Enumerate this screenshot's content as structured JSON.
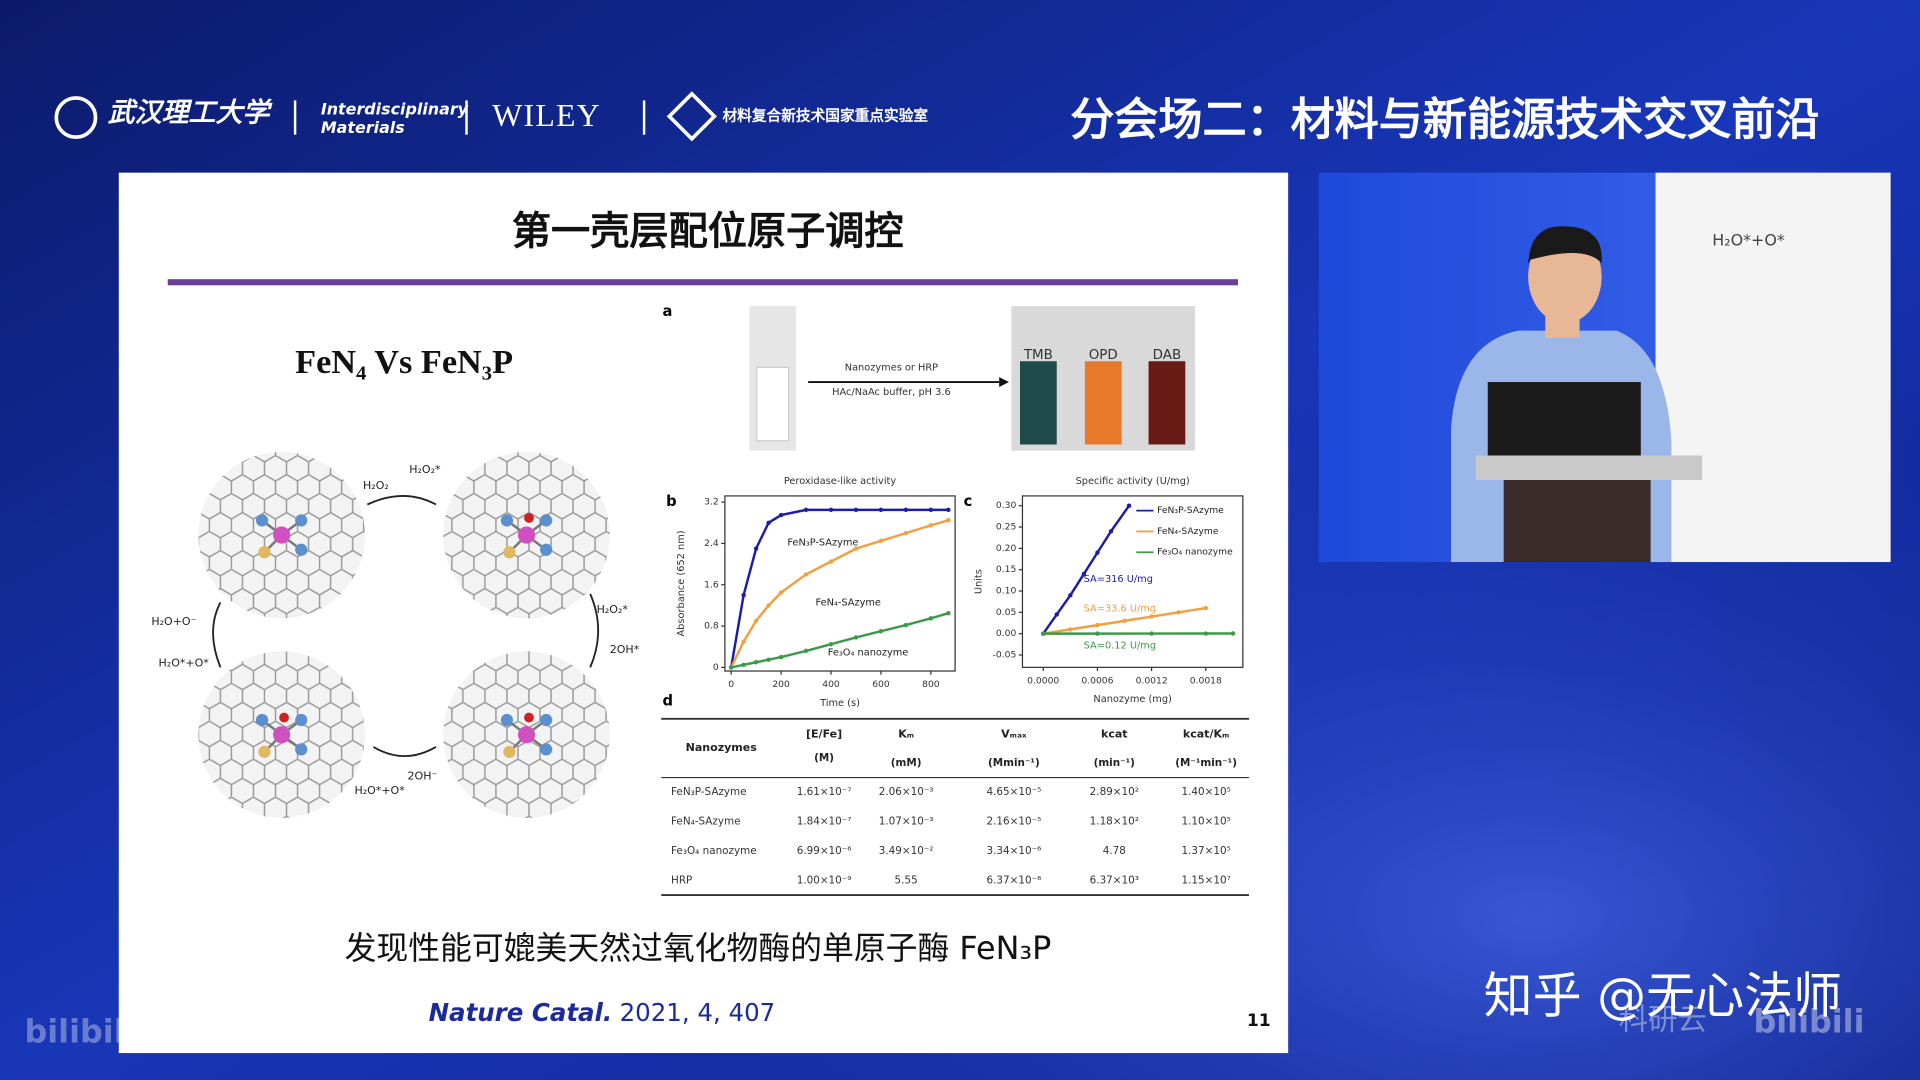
{
  "header": {
    "university": "武汉理工大学",
    "journal_line1": "Interdisciplinary",
    "journal_line2": "Materials",
    "publisher": "WILEY",
    "lab": "材料复合新技术国家重点实验室",
    "session": "分会场二：材料与新能源技术交叉前沿"
  },
  "slide": {
    "title": "第一壳层配位原子调控",
    "comparison": "FeN₄  Vs  FeN₃P",
    "mechanism_labels": [
      "H₂O₂",
      "H₂O₂*",
      "H₂O₂*",
      "2OH*",
      "2OH⁻",
      "H₂O*+O*",
      "H₂O+O⁻",
      "H₂O*+O*"
    ],
    "panel_a": {
      "label": "a",
      "arrow_top": "Nanozymes or HRP",
      "arrow_bottom": "HAc/NaAc buffer, pH 3.6",
      "vials": [
        "TMB",
        "OPD",
        "DAB"
      ]
    },
    "panel_b": {
      "label": "b",
      "title": "Peroxidase-like  activity",
      "x_label": "Time (s)",
      "y_label": "Absorbance (652 nm)",
      "xlim": [
        -25,
        897
      ],
      "ylim": [
        -0.07,
        3.32
      ],
      "xticks": [
        0,
        200,
        400,
        600,
        800
      ],
      "yticks": [
        0.0,
        0.8,
        1.6,
        2.4,
        3.2
      ],
      "x": [
        0,
        50,
        100,
        150,
        200,
        300,
        400,
        500,
        600,
        700,
        800,
        870
      ],
      "series": [
        {
          "name": "FeN₃P-SAzyme",
          "color": "#1c1ca8",
          "values": [
            0,
            1.4,
            2.3,
            2.8,
            2.95,
            3.05,
            3.05,
            3.05,
            3.05,
            3.05,
            3.05,
            3.05
          ]
        },
        {
          "name": "FeN₄-SAzyme",
          "color": "#f0a040",
          "values": [
            0,
            0.5,
            0.9,
            1.2,
            1.45,
            1.8,
            2.05,
            2.3,
            2.45,
            2.6,
            2.75,
            2.85
          ]
        },
        {
          "name": "Fe₃O₄ nanozyme",
          "color": "#3a9a4a",
          "values": [
            0,
            0.05,
            0.1,
            0.15,
            0.2,
            0.32,
            0.45,
            0.58,
            0.7,
            0.82,
            0.95,
            1.05
          ]
        }
      ]
    },
    "panel_c": {
      "label": "c",
      "title": "Specific activity (U/mg)",
      "x_label": "Nanozyme (mg)",
      "y_label": "Units",
      "xlim": [
        -0.00023,
        0.00221
      ],
      "ylim": [
        -0.079,
        0.323
      ],
      "xticks": [
        {
          "value": 0,
          "label": "0.0000"
        },
        {
          "value": 0.0006,
          "label": "0.0006"
        },
        {
          "value": 0.0012,
          "label": "0.0012"
        },
        {
          "value": 0.0018,
          "label": "0.0018"
        }
      ],
      "yticks": [
        -0.05,
        {
          "value": 0,
          "label": "0.00"
        },
        0.05,
        {
          "value": 0.1,
          "label": "0.10"
        },
        0.15,
        {
          "value": 0.2,
          "label": "0.20"
        },
        0.25,
        {
          "value": 0.3,
          "label": "0.30"
        }
      ],
      "series": [
        {
          "name": "FeN₃P-SAzyme",
          "color": "#1c1ca8",
          "x": [
            0,
            0.00015,
            0.0003,
            0.00045,
            0.0006,
            0.00075,
            0.00095
          ],
          "values": [
            0,
            0.045,
            0.09,
            0.14,
            0.19,
            0.24,
            0.3
          ]
        },
        {
          "name": "FeN₄-SAzyme",
          "color": "#f0a040",
          "x": [
            0,
            0.0003,
            0.0006,
            0.0009,
            0.0012,
            0.0015,
            0.0018
          ],
          "values": [
            0,
            0.01,
            0.02,
            0.03,
            0.04,
            0.05,
            0.06
          ]
        },
        {
          "name": "Fe₃O₄ nanozyme",
          "color": "#3a9a4a",
          "x": [
            0,
            0.0006,
            0.0012,
            0.0018,
            0.0021
          ],
          "values": [
            0,
            0.0001,
            0.0002,
            0.0003,
            0.0004
          ]
        }
      ],
      "annotations": [
        "SA=316 U/mg",
        "SA=33.6 U/mg",
        "SA=0.12 U/mg"
      ]
    },
    "panel_d": {
      "label": "d",
      "header": [
        "Nanozymes",
        "[E/Fe]",
        "Kₘ",
        "Vₘₐₓ",
        "kcat",
        "kcat/Kₘ"
      ],
      "header_units": [
        "(M)",
        "(mM)",
        "(Mmin⁻¹)",
        "(min⁻¹)",
        "(M⁻¹min⁻¹)"
      ],
      "rows": [
        [
          "FeN₃P-SAzyme",
          "1.61×10⁻⁷",
          "2.06×10⁻³",
          "4.65×10⁻⁵",
          "2.89×10²",
          "1.40×10⁵"
        ],
        [
          "FeN₄-SAzyme",
          "1.84×10⁻⁷",
          "1.07×10⁻³",
          "2.16×10⁻⁵",
          "1.18×10²",
          "1.10×10⁵"
        ],
        [
          "Fe₃O₄ nanozyme",
          "6.99×10⁻⁶",
          "3.49×10⁻²",
          "3.34×10⁻⁶",
          "4.78",
          "1.37×10⁵"
        ],
        [
          "HRP",
          "1.00×10⁻⁹",
          "5.55",
          "6.37×10⁻⁶",
          "6.37×10³",
          "1.15×10⁷"
        ]
      ]
    },
    "conclusion": "发现性能可媲美天然过氧化物酶的单原子酶 FeN₃P",
    "citation": {
      "journal": "Nature Catal.",
      "details": "2021, 4, 407"
    },
    "page_number": "11"
  },
  "video": {
    "whiteboard_text": "H₂O*+O*"
  },
  "watermarks": {
    "zhihu": "知乎 @无心法师",
    "bilibili_left": "bilibili",
    "keyanyun": "科研云",
    "bilibili_right": "bilibili"
  }
}
